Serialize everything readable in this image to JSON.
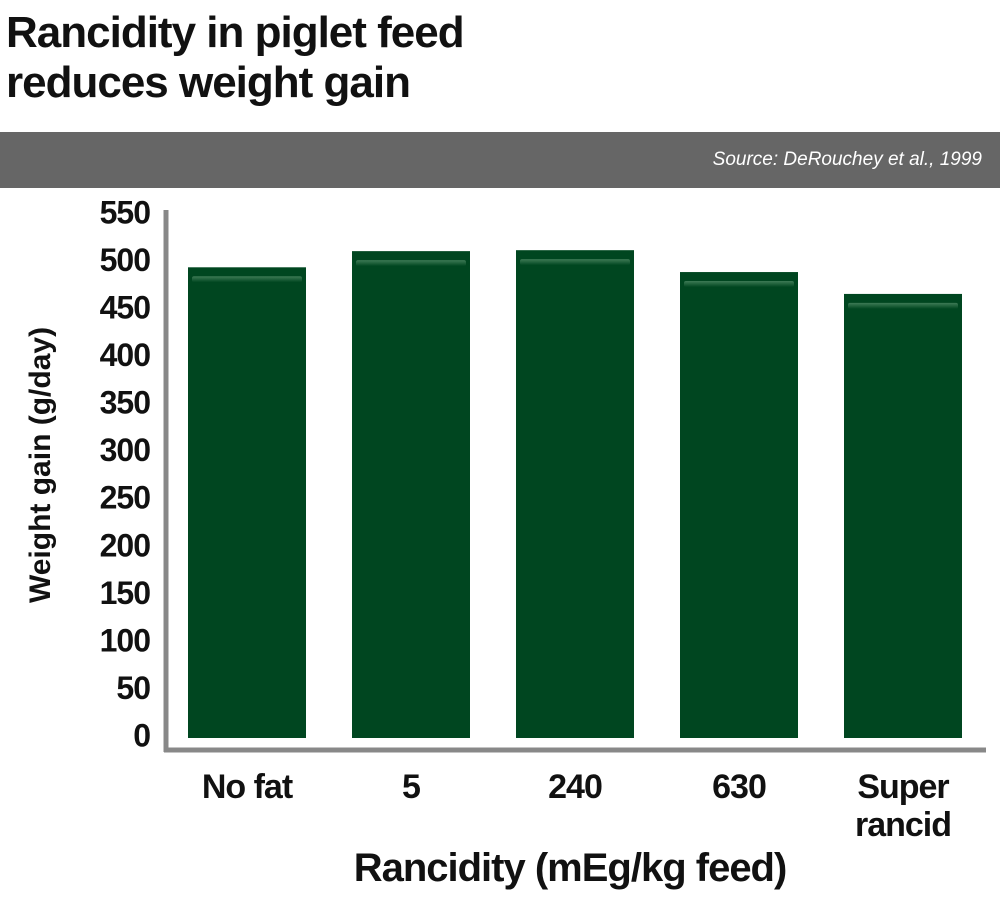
{
  "chart_data": {
    "type": "bar",
    "title": [
      "Rancidity in piglet feed",
      "reduces weight gain"
    ],
    "source": "Source: DeRouchey et al., 1999",
    "x_label": "Rancidity (mEg/kg feed)",
    "y_label": "Weight gain (g/day)",
    "categories": [
      "No fat",
      "5",
      "240",
      "630",
      "Super rancid"
    ],
    "values": [
      495,
      512,
      513,
      490,
      467
    ],
    "color": "#004620",
    "ylim": [
      0,
      550
    ],
    "yticks": [
      0,
      50,
      100,
      150,
      200,
      250,
      300,
      350,
      400,
      450,
      500,
      550
    ],
    "grid": false
  }
}
